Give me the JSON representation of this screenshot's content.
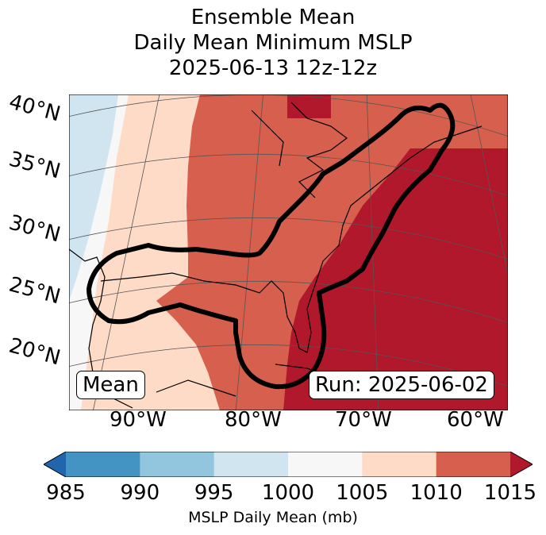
{
  "title": {
    "line1": "Ensemble Mean",
    "line2": "Daily Mean Minimum MSLP",
    "line3": "2025-06-13 12z-12z"
  },
  "map": {
    "projection": "conic",
    "lat_labels": [
      "40°N",
      "35°N",
      "30°N",
      "25°N",
      "20°N"
    ],
    "lon_labels": [
      "90°W",
      "80°W",
      "70°W",
      "60°W"
    ],
    "contour_color": "#000000",
    "coastline_color": "#000000",
    "gridline_color": "#555555"
  },
  "annotations": {
    "left_box": "Mean",
    "right_box": "Run: 2025-06-02"
  },
  "colorbar": {
    "label": "MSLP Daily Mean (mb)",
    "ticks": [
      "985",
      "990",
      "995",
      "1000",
      "1005",
      "1010",
      "1015"
    ],
    "bins": [
      {
        "range": "<985",
        "color": "#2166ac"
      },
      {
        "range": "985-990",
        "color": "#4393c3"
      },
      {
        "range": "990-995",
        "color": "#92c5de"
      },
      {
        "range": "995-1000",
        "color": "#d1e5f0"
      },
      {
        "range": "1000-1005",
        "color": "#f7f7f7"
      },
      {
        "range": "1005-1010",
        "color": "#fddbc7"
      },
      {
        "range": "1010-1015",
        "color": "#d6604d"
      },
      {
        "range": ">1015",
        "color": "#b2182b"
      }
    ],
    "extend": "both"
  }
}
